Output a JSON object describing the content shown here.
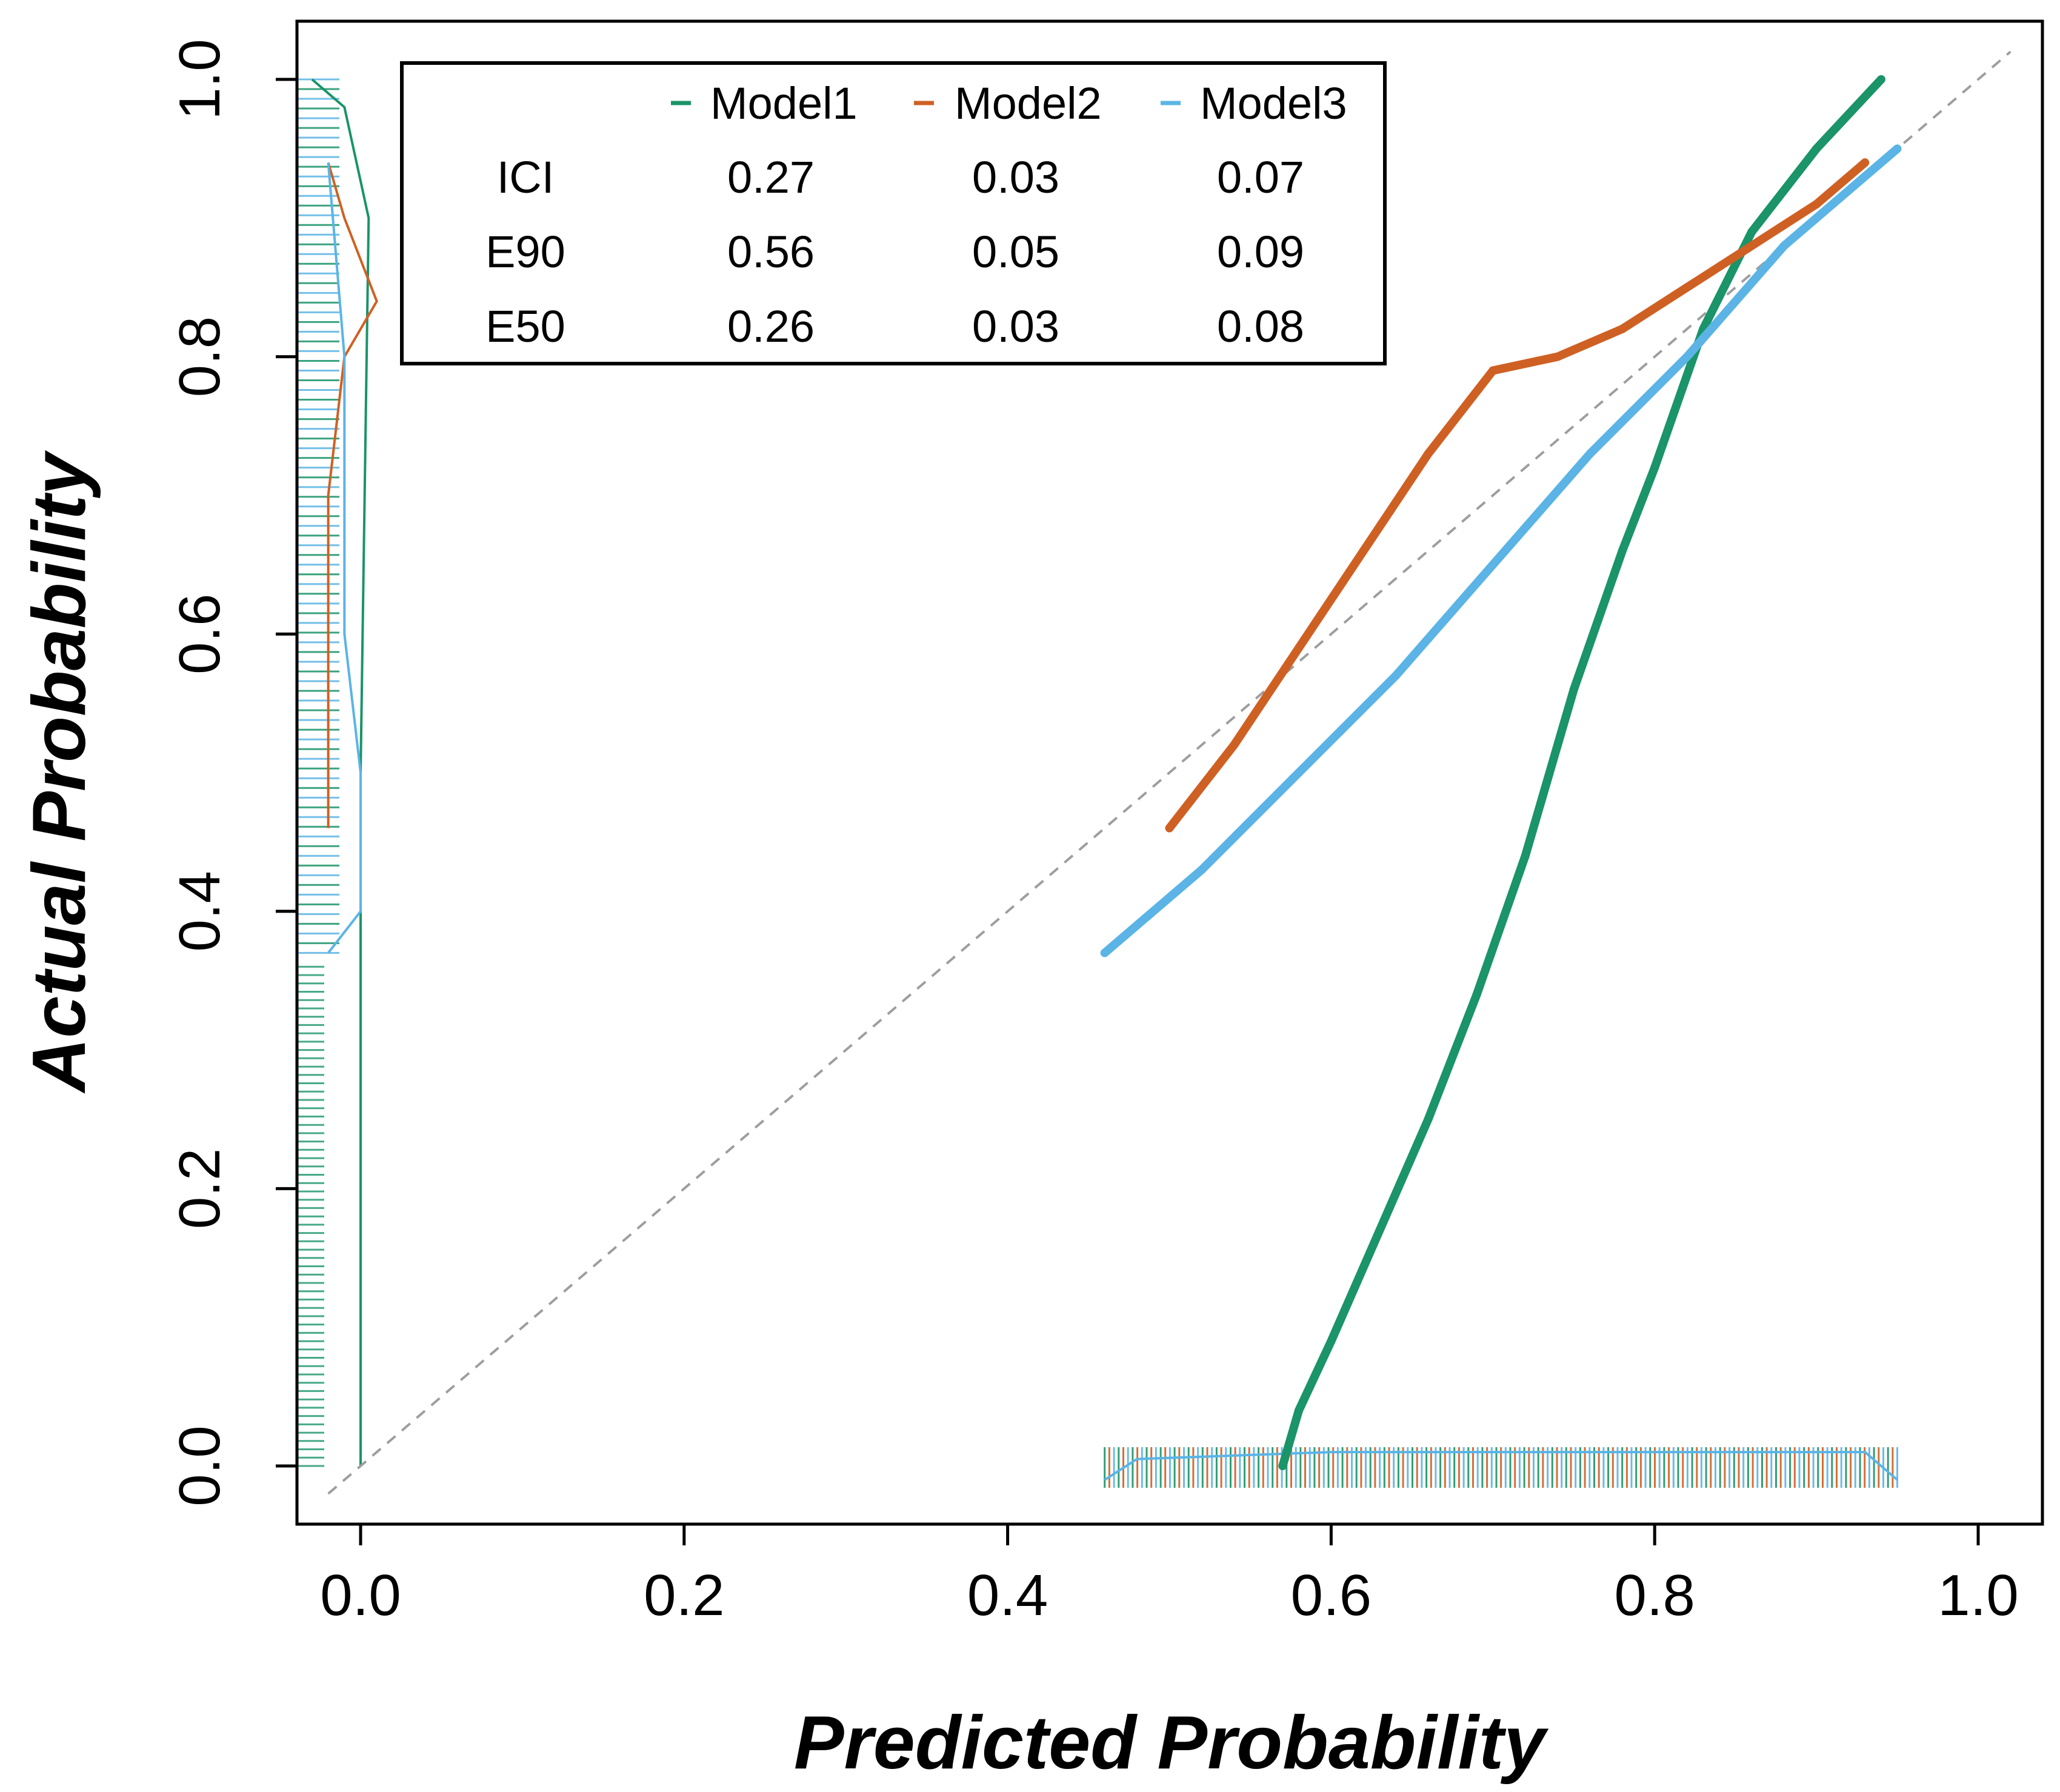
{
  "chart_data": {
    "type": "line",
    "xlabel": "Predicted Probability",
    "ylabel": "Actual Probability",
    "xlim": [
      -0.02,
      1.02
    ],
    "ylim": [
      -0.02,
      1.02
    ],
    "x_ticks": [
      0.0,
      0.2,
      0.4,
      0.6,
      0.8,
      1.0
    ],
    "x_tick_labels": [
      "0.0",
      "0.2",
      "0.4",
      "0.6",
      "0.8",
      "1.0"
    ],
    "y_ticks": [
      0.0,
      0.2,
      0.4,
      0.6,
      0.8,
      1.0
    ],
    "y_tick_labels": [
      "0.0",
      "0.2",
      "0.4",
      "0.6",
      "0.8",
      "1.0"
    ],
    "reference_line": {
      "name": "ideal",
      "x": [
        -0.02,
        1.02
      ],
      "y": [
        -0.02,
        1.02
      ],
      "color": "#9e9e9e",
      "style": "dashed"
    },
    "series": [
      {
        "name": "Model1",
        "color": "#1a9468",
        "x": [
          0.57,
          0.58,
          0.6,
          0.63,
          0.66,
          0.69,
          0.72,
          0.75,
          0.78,
          0.8,
          0.83,
          0.86,
          0.9,
          0.94
        ],
        "y": [
          0.0,
          0.04,
          0.09,
          0.17,
          0.25,
          0.34,
          0.44,
          0.56,
          0.66,
          0.72,
          0.82,
          0.89,
          0.95,
          1.0
        ]
      },
      {
        "name": "Model2",
        "color": "#cf6023",
        "x": [
          0.5,
          0.54,
          0.58,
          0.62,
          0.66,
          0.7,
          0.74,
          0.78,
          0.82,
          0.86,
          0.9,
          0.93
        ],
        "y": [
          0.46,
          0.52,
          0.59,
          0.66,
          0.73,
          0.79,
          0.8,
          0.82,
          0.85,
          0.88,
          0.91,
          0.94
        ]
      },
      {
        "name": "Model3",
        "color": "#5bb4e5",
        "x": [
          0.46,
          0.52,
          0.58,
          0.64,
          0.7,
          0.76,
          0.82,
          0.88,
          0.95
        ],
        "y": [
          0.37,
          0.43,
          0.5,
          0.57,
          0.65,
          0.73,
          0.8,
          0.88,
          0.95
        ]
      }
    ],
    "legend": {
      "position": "top-left",
      "entries": [
        "Model1",
        "Model2",
        "Model3"
      ],
      "metrics": [
        {
          "label": "ICI",
          "values": [
            "0.27",
            "0.03",
            "0.07"
          ]
        },
        {
          "label": "E90",
          "values": [
            "0.56",
            "0.05",
            "0.09"
          ]
        },
        {
          "label": "E50",
          "values": [
            "0.26",
            "0.03",
            "0.08"
          ]
        }
      ]
    },
    "rug_x_range": [
      0.46,
      0.95
    ],
    "rug_y_range": [
      0.37,
      1.0
    ]
  }
}
